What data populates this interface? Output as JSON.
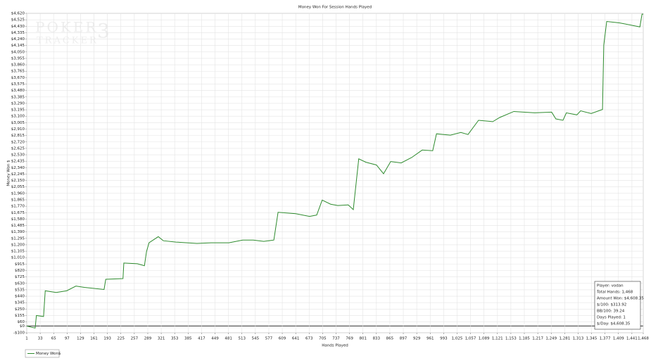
{
  "chart_data": {
    "type": "line",
    "title": "Money Won For Session Hands Played",
    "x_label": "Hands Played",
    "y_label": "Money Won $",
    "watermark": {
      "line1": "POKER",
      "line2": "TRACKER",
      "mark": "3"
    },
    "x": [
      1,
      13,
      21,
      24,
      41,
      45,
      71,
      96,
      118,
      138,
      185,
      189,
      230,
      232,
      264,
      281,
      286,
      292,
      314,
      326,
      356,
      406,
      440,
      482,
      515,
      540,
      565,
      589,
      599,
      641,
      674,
      691,
      704,
      724,
      741,
      766,
      778,
      791,
      808,
      833,
      850,
      867,
      892,
      917,
      942,
      967,
      976,
      1009,
      1034,
      1051,
      1076,
      1110,
      1126,
      1160,
      1210,
      1250,
      1260,
      1277,
      1285,
      1310,
      1319,
      1344,
      1371,
      1374,
      1381,
      1411,
      1436,
      1460,
      1465,
      1468
    ],
    "series": [
      {
        "name": "Money Won$",
        "color": "#2e8b2e",
        "values": [
          0,
          -20,
          -30,
          155,
          140,
          520,
          495,
          520,
          590,
          570,
          540,
          690,
          700,
          930,
          920,
          890,
          1100,
          1230,
          1320,
          1260,
          1240,
          1220,
          1230,
          1230,
          1270,
          1270,
          1250,
          1270,
          1680,
          1660,
          1620,
          1640,
          1860,
          1800,
          1780,
          1790,
          1720,
          2470,
          2420,
          2380,
          2250,
          2430,
          2410,
          2490,
          2600,
          2590,
          2840,
          2820,
          2860,
          2830,
          3040,
          3020,
          3080,
          3170,
          3150,
          3160,
          3060,
          3040,
          3150,
          3120,
          3180,
          3140,
          3200,
          4150,
          4500,
          4480,
          4450,
          4420,
          4608.35,
          4608.35
        ]
      }
    ],
    "xlim": [
      1,
      1468
    ],
    "xticks": [
      1,
      33,
      65,
      97,
      129,
      161,
      193,
      225,
      257,
      289,
      321,
      353,
      385,
      417,
      449,
      481,
      513,
      545,
      577,
      609,
      641,
      673,
      705,
      737,
      769,
      801,
      833,
      865,
      897,
      929,
      961,
      993,
      {
        "value": 1025,
        "label": "1,025"
      },
      {
        "value": 1057,
        "label": "1,057"
      },
      {
        "value": 1089,
        "label": "1,089"
      },
      {
        "value": 1121,
        "label": "1,121"
      },
      {
        "value": 1153,
        "label": "1,153"
      },
      {
        "value": 1185,
        "label": "1,185"
      },
      {
        "value": 1217,
        "label": "1,217"
      },
      {
        "value": 1249,
        "label": "1,249"
      },
      {
        "value": 1281,
        "label": "1,281"
      },
      {
        "value": 1313,
        "label": "1,313"
      },
      {
        "value": 1345,
        "label": "1,345"
      },
      {
        "value": 1377,
        "label": "1,377"
      },
      {
        "value": 1409,
        "label": "1,409"
      },
      {
        "value": 1441,
        "label": "1,441"
      },
      {
        "value": 1468,
        "label": "1,468"
      }
    ],
    "ylim": [
      -100,
      4620
    ],
    "yticks": [
      {
        "value": -100,
        "label": "-$100"
      },
      {
        "value": 0,
        "label": "$0"
      },
      {
        "value": 60,
        "label": "$60"
      },
      {
        "value": 155,
        "label": "$155"
      },
      {
        "value": 250,
        "label": "$250"
      },
      {
        "value": 345,
        "label": "$345"
      },
      {
        "value": 440,
        "label": "$440"
      },
      {
        "value": 535,
        "label": "$535"
      },
      {
        "value": 630,
        "label": "$630"
      },
      {
        "value": 725,
        "label": "$725"
      },
      {
        "value": 820,
        "label": "$820"
      },
      {
        "value": 915,
        "label": "$915"
      },
      {
        "value": 1010,
        "label": "$1,010"
      },
      {
        "value": 1105,
        "label": "$1,105"
      },
      {
        "value": 1200,
        "label": "$1,200"
      },
      {
        "value": 1295,
        "label": "$1,295"
      },
      {
        "value": 1390,
        "label": "$1,390"
      },
      {
        "value": 1485,
        "label": "$1,485"
      },
      {
        "value": 1580,
        "label": "$1,580"
      },
      {
        "value": 1675,
        "label": "$1,675"
      },
      {
        "value": 1770,
        "label": "$1,770"
      },
      {
        "value": 1865,
        "label": "$1,865"
      },
      {
        "value": 1960,
        "label": "$1,960"
      },
      {
        "value": 2055,
        "label": "$2,055"
      },
      {
        "value": 2150,
        "label": "$2,150"
      },
      {
        "value": 2245,
        "label": "$2,245"
      },
      {
        "value": 2340,
        "label": "$2,340"
      },
      {
        "value": 2435,
        "label": "$2,435"
      },
      {
        "value": 2530,
        "label": "$2,530"
      },
      {
        "value": 2625,
        "label": "$2,625"
      },
      {
        "value": 2720,
        "label": "$2,720"
      },
      {
        "value": 2815,
        "label": "$2,815"
      },
      {
        "value": 2910,
        "label": "$2,910"
      },
      {
        "value": 3005,
        "label": "$3,005"
      },
      {
        "value": 3100,
        "label": "$3,100"
      },
      {
        "value": 3195,
        "label": "$3,195"
      },
      {
        "value": 3290,
        "label": "$3,290"
      },
      {
        "value": 3385,
        "label": "$3,385"
      },
      {
        "value": 3480,
        "label": "$3,480"
      },
      {
        "value": 3575,
        "label": "$3,575"
      },
      {
        "value": 3670,
        "label": "$3,670"
      },
      {
        "value": 3765,
        "label": "$3,765"
      },
      {
        "value": 3860,
        "label": "$3,860"
      },
      {
        "value": 3955,
        "label": "$3,955"
      },
      {
        "value": 4050,
        "label": "$4,050"
      },
      {
        "value": 4145,
        "label": "$4,145"
      },
      {
        "value": 4240,
        "label": "$4,240"
      },
      {
        "value": 4335,
        "label": "$4,335"
      },
      {
        "value": 4430,
        "label": "$4,430"
      },
      {
        "value": 4525,
        "label": "$4,525"
      },
      {
        "value": 4620,
        "label": "$4,620"
      }
    ],
    "grid": true,
    "info_box": [
      "Player: vodan",
      "Total Hands: 1,468",
      "Amount Won: $4,608.35",
      "$/100: $313.92",
      "BB/100: 39.24",
      "Days Played: 1",
      "$/Day: $4,608.35"
    ]
  }
}
